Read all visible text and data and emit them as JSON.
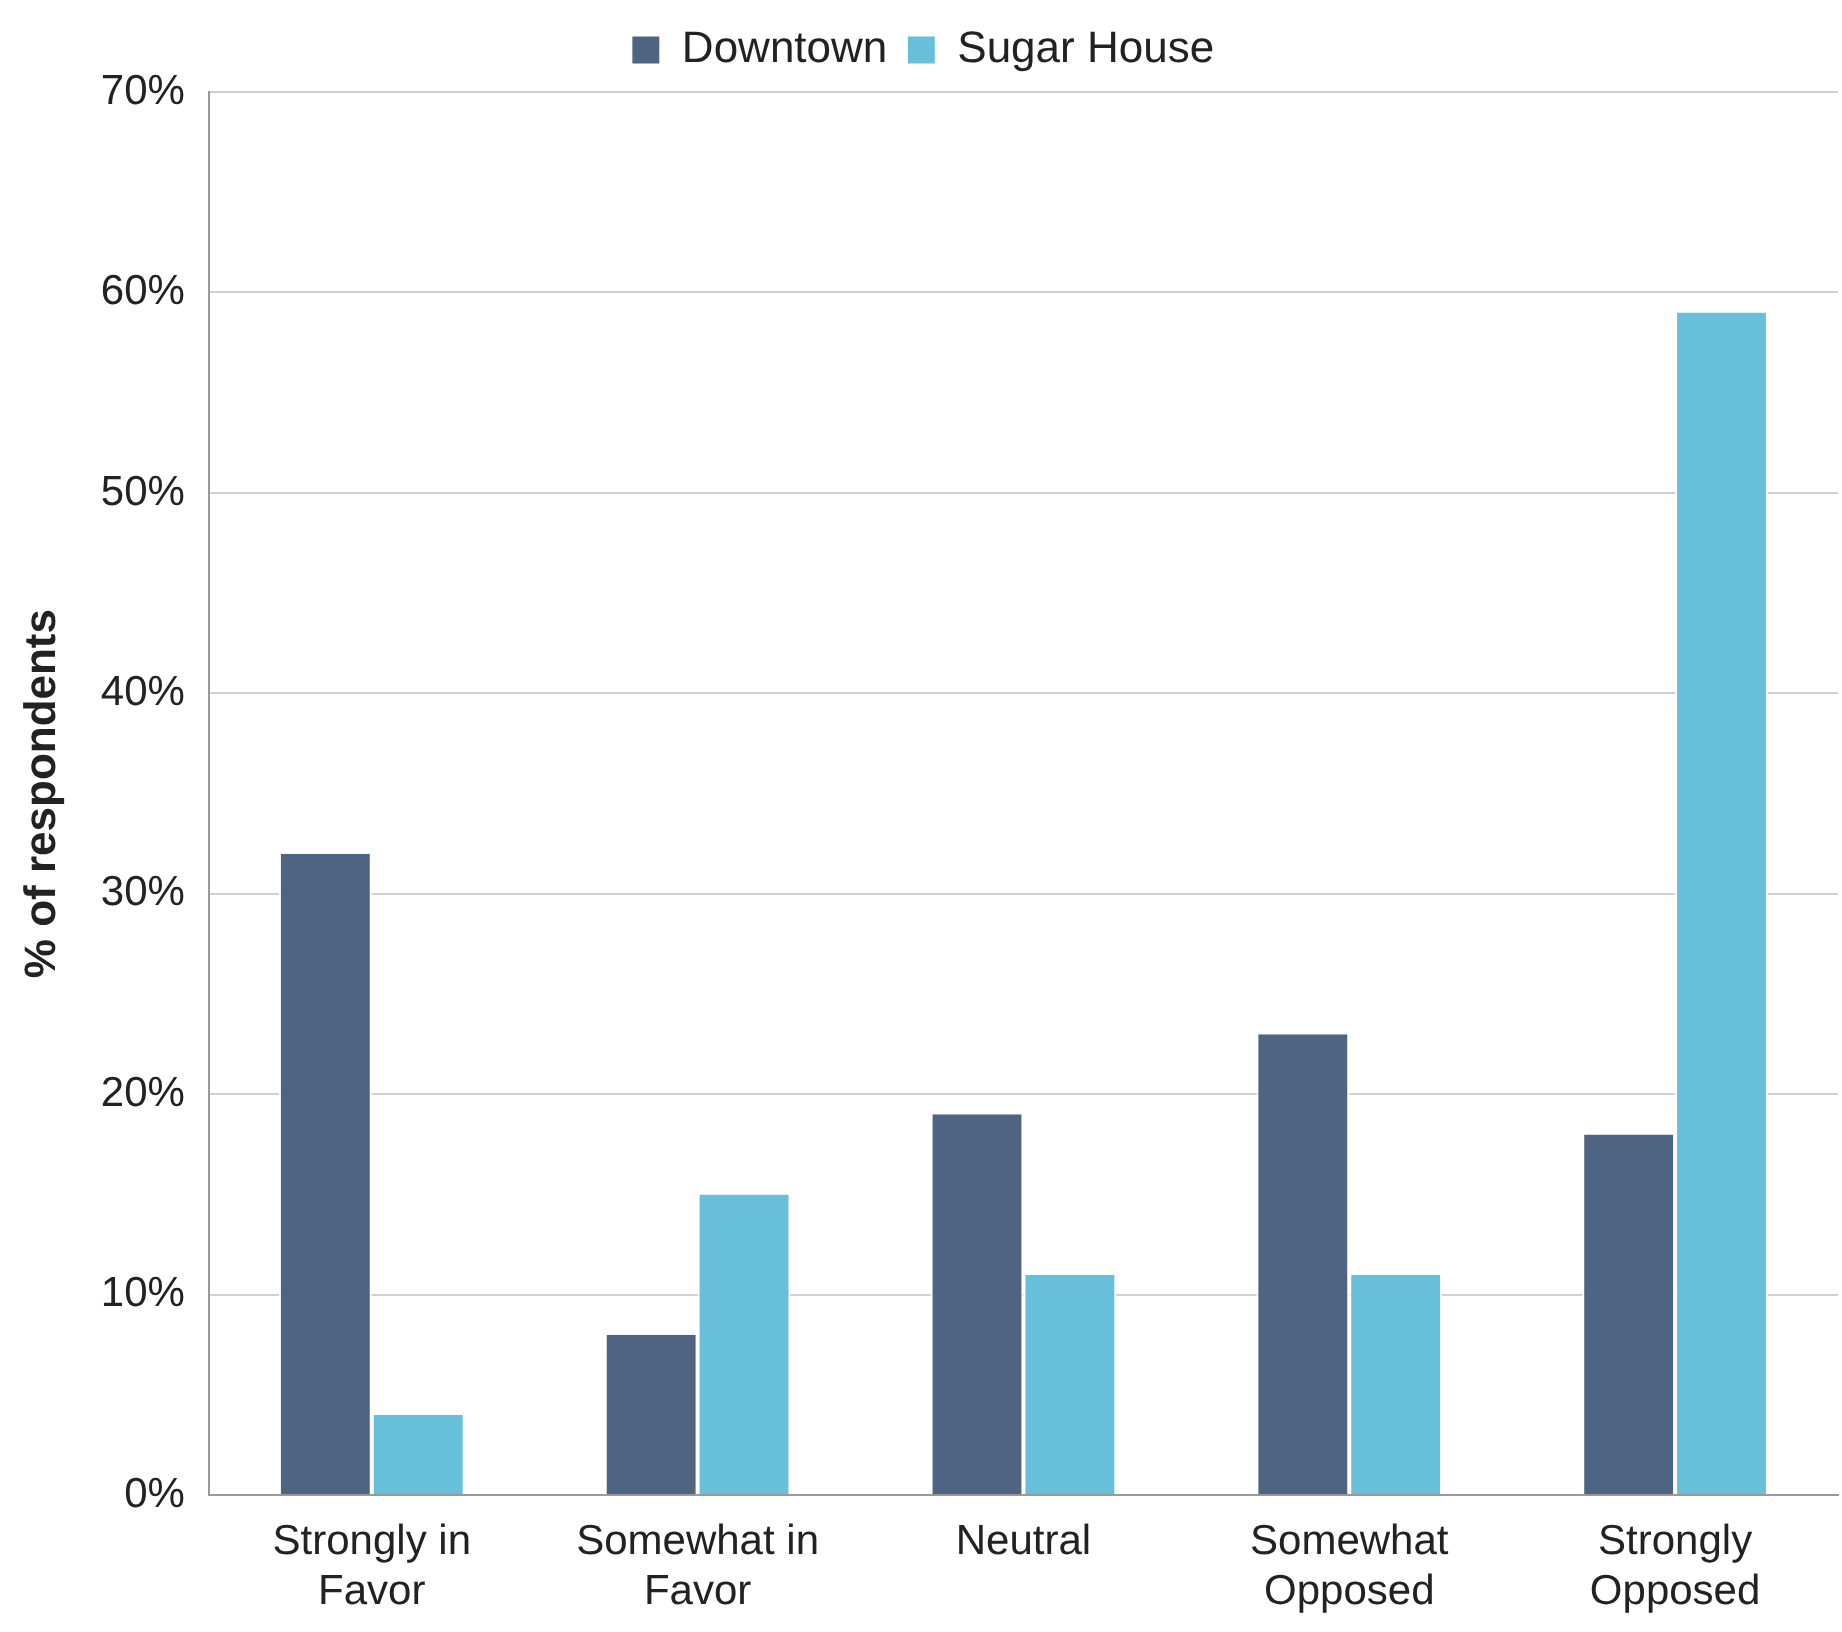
{
  "chart_data": {
    "type": "bar",
    "ylabel": "% of respondents",
    "categories": [
      "Strongly in Favor",
      "Somewhat in Favor",
      "Neutral",
      "Somewhat Opposed",
      "Strongly Opposed"
    ],
    "series": [
      {
        "name": "Downtown",
        "color": "#4f6482",
        "values": [
          32,
          8,
          19,
          23,
          18
        ]
      },
      {
        "name": "Sugar House",
        "color": "#67bfd9",
        "values": [
          4,
          15,
          11,
          11,
          59
        ]
      }
    ],
    "ylim": [
      0,
      70
    ],
    "yticks": [
      {
        "value": 0,
        "label": "0%"
      },
      {
        "value": 10,
        "label": "10%"
      },
      {
        "value": 20,
        "label": "20%"
      },
      {
        "value": 30,
        "label": "30%"
      },
      {
        "value": 40,
        "label": "40%"
      },
      {
        "value": 50,
        "label": "50%"
      },
      {
        "value": 60,
        "label": "60%"
      },
      {
        "value": 70,
        "label": "70%"
      }
    ],
    "grid": "y",
    "legend": "top"
  }
}
